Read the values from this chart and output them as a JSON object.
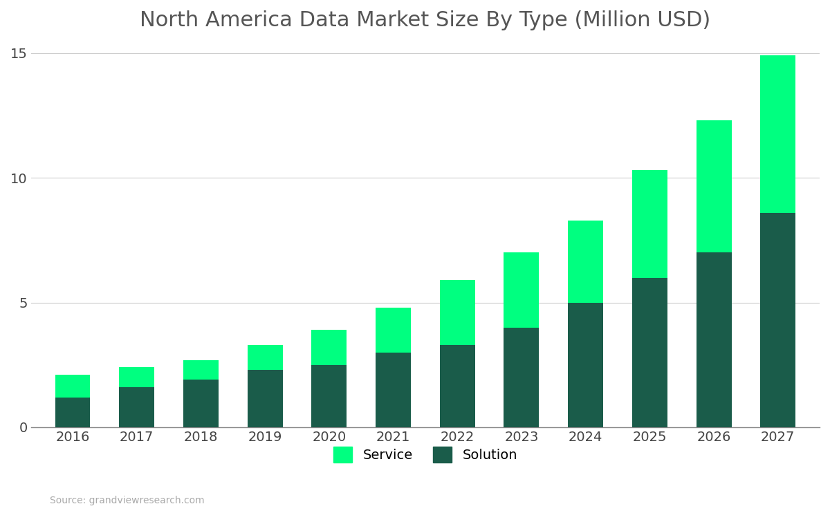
{
  "years": [
    2016,
    2017,
    2018,
    2019,
    2020,
    2021,
    2022,
    2023,
    2024,
    2025,
    2026,
    2027
  ],
  "solution": [
    1.2,
    1.6,
    1.9,
    2.3,
    2.5,
    3.0,
    3.3,
    4.0,
    5.0,
    6.0,
    7.0,
    8.6
  ],
  "service": [
    0.9,
    0.8,
    0.8,
    1.0,
    1.4,
    1.8,
    2.6,
    3.0,
    3.3,
    4.3,
    5.3,
    6.3
  ],
  "solution_color": "#1a5c4a",
  "service_color": "#00ff80",
  "title": "North America Data Market Size By Type (Million USD)",
  "ylim": [
    0,
    15
  ],
  "yticks": [
    0,
    5,
    10,
    15
  ],
  "background_color": "#ffffff",
  "grid_color": "#cccccc",
  "title_fontsize": 22,
  "tick_fontsize": 14,
  "legend_fontsize": 14,
  "source_text": "Source: grandviewresearch.com",
  "bar_width": 0.55
}
